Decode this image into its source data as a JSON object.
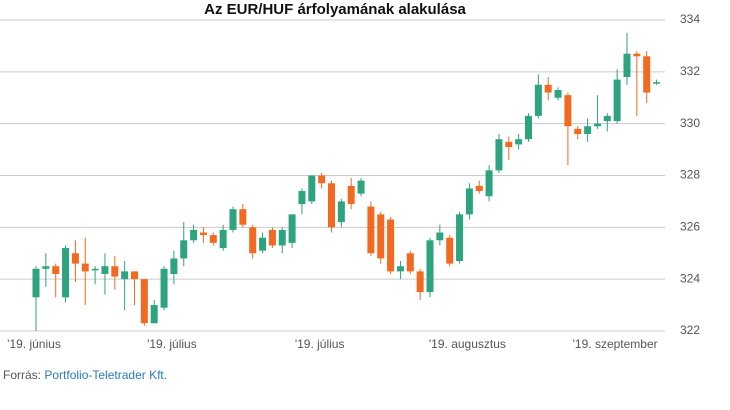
{
  "chart_data": {
    "type": "candlestick",
    "title": "Az EUR/HUF árfolyamának alakulása",
    "categories": [
      "'19. június",
      null,
      null,
      null,
      null,
      null,
      null,
      null,
      null,
      null,
      null,
      null,
      null,
      null,
      "'19. július",
      null,
      null,
      null,
      null,
      null,
      null,
      null,
      null,
      null,
      null,
      null,
      null,
      null,
      null,
      "'19. július",
      null,
      null,
      null,
      null,
      null,
      null,
      null,
      null,
      null,
      null,
      null,
      null,
      null,
      null,
      "'19. augusztus",
      null,
      null,
      null,
      null,
      null,
      null,
      null,
      null,
      null,
      null,
      null,
      null,
      null,
      null,
      "'19. szeptember",
      null,
      null,
      null,
      null
    ],
    "open": [
      323.3,
      324.4,
      324.5,
      323.3,
      325.0,
      324.6,
      324.4,
      324.2,
      324.5,
      324.0,
      324.3,
      324.0,
      322.3,
      322.9,
      324.2,
      324.8,
      325.5,
      325.8,
      325.7,
      325.2,
      325.9,
      326.7,
      326.0,
      325.1,
      325.9,
      325.3,
      325.4,
      326.9,
      327.0,
      328.0,
      327.7,
      326.2,
      327.6,
      327.3,
      326.8,
      326.5,
      326.3,
      324.3,
      325.0,
      324.3,
      323.5,
      325.5,
      325.6,
      324.7,
      326.5,
      327.6,
      327.2,
      328.2,
      329.3,
      329.2,
      329.4,
      330.3,
      331.5,
      331.0,
      331.1,
      329.8,
      329.6,
      329.9,
      330.1,
      330.1,
      331.8,
      332.7,
      332.6,
      331.6
    ],
    "high": [
      324.5,
      325.0,
      324.6,
      325.3,
      325.5,
      325.6,
      324.5,
      325.0,
      324.9,
      324.7,
      324.3,
      324.0,
      323.2,
      324.5,
      325.1,
      326.2,
      326.1,
      326.0,
      325.8,
      326.1,
      326.8,
      326.9,
      326.1,
      325.8,
      326.0,
      326.0,
      326.5,
      327.5,
      328.0,
      328.1,
      327.8,
      327.1,
      327.9,
      327.9,
      327.0,
      326.6,
      326.4,
      324.7,
      325.1,
      324.4,
      325.6,
      326.1,
      325.7,
      326.6,
      327.7,
      327.8,
      328.4,
      329.6,
      329.5,
      329.6,
      330.4,
      331.9,
      331.8,
      331.4,
      331.2,
      329.9,
      330.2,
      331.1,
      330.4,
      332.1,
      333.5,
      332.8,
      332.8,
      331.7
    ],
    "low": [
      322.0,
      323.7,
      323.3,
      323.1,
      323.9,
      323.0,
      323.8,
      323.4,
      323.6,
      322.8,
      323.0,
      322.2,
      322.3,
      322.8,
      323.8,
      324.5,
      325.4,
      325.4,
      325.3,
      325.1,
      325.8,
      326.0,
      324.8,
      325.0,
      325.2,
      325.0,
      325.2,
      326.5,
      326.9,
      327.5,
      325.8,
      326.0,
      326.7,
      327.2,
      324.9,
      324.6,
      324.2,
      324.0,
      324.2,
      323.2,
      323.3,
      325.3,
      324.5,
      324.6,
      326.3,
      327.3,
      327.0,
      328.1,
      328.6,
      329.0,
      329.3,
      330.2,
      330.9,
      330.9,
      328.4,
      329.4,
      329.3,
      329.8,
      329.7,
      330.0,
      331.5,
      330.3,
      330.8,
      331.5
    ],
    "close": [
      324.4,
      324.5,
      324.2,
      325.2,
      324.6,
      324.3,
      324.4,
      324.5,
      324.1,
      324.3,
      324.0,
      322.3,
      323.0,
      324.4,
      324.8,
      325.5,
      325.9,
      325.7,
      325.4,
      325.9,
      326.7,
      326.1,
      325.0,
      325.6,
      325.3,
      325.9,
      326.5,
      327.4,
      328.0,
      327.7,
      326.0,
      327.0,
      326.9,
      327.8,
      325.0,
      324.8,
      324.3,
      324.5,
      324.3,
      323.5,
      325.5,
      325.8,
      324.6,
      326.5,
      327.5,
      327.4,
      328.2,
      329.4,
      329.1,
      329.4,
      330.3,
      331.5,
      331.2,
      331.3,
      329.9,
      329.6,
      329.9,
      330.0,
      330.3,
      331.7,
      332.7,
      332.6,
      331.2,
      331.6
    ],
    "up_color": "#2ea37f",
    "down_color": "#f26a21",
    "ylim": [
      322,
      334
    ],
    "yticks": [
      322,
      324,
      326,
      328,
      330,
      332,
      334
    ],
    "grid": true,
    "source_label": "Forrás:",
    "source": "Portfolio-Teletrader Kft."
  }
}
